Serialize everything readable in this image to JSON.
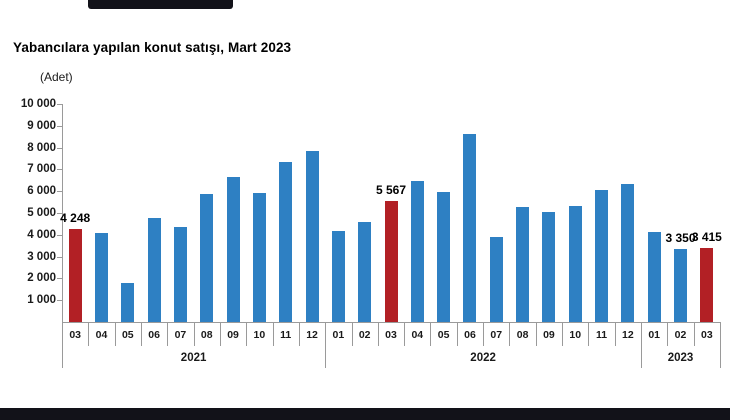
{
  "chart_data": {
    "type": "bar",
    "title": "Yabancılara yapılan konut satışı, Mart 2023",
    "unit_label": "(Adet)",
    "xlabel": "",
    "ylabel": "Adet",
    "ylim": [
      0,
      10000
    ],
    "ytick_values": [
      10000,
      9000,
      8000,
      7000,
      6000,
      5000,
      4000,
      3000,
      2000,
      1000
    ],
    "ytick_labels": [
      "10 000",
      "9 000",
      "8 000",
      "7 000",
      "6 000",
      "5 000",
      "4 000",
      "3 000",
      "2 000",
      "1 000"
    ],
    "grid": "off",
    "legend": "none",
    "years": [
      {
        "label": "2021",
        "months": [
          "03",
          "04",
          "05",
          "06",
          "07",
          "08",
          "09",
          "10",
          "11",
          "12"
        ]
      },
      {
        "label": "2022",
        "months": [
          "01",
          "02",
          "03",
          "04",
          "05",
          "06",
          "07",
          "08",
          "09",
          "10",
          "11",
          "12"
        ]
      },
      {
        "label": "2023",
        "months": [
          "01",
          "02",
          "03"
        ]
      }
    ],
    "categories": [
      "2021-03",
      "2021-04",
      "2021-05",
      "2021-06",
      "2021-07",
      "2021-08",
      "2021-09",
      "2021-10",
      "2021-11",
      "2021-12",
      "2022-01",
      "2022-02",
      "2022-03",
      "2022-04",
      "2022-05",
      "2022-06",
      "2022-07",
      "2022-08",
      "2022-09",
      "2022-10",
      "2022-11",
      "2022-12",
      "2023-01",
      "2023-02",
      "2023-03"
    ],
    "values": [
      4248,
      4080,
      1780,
      4750,
      4350,
      5870,
      6630,
      5900,
      7360,
      7840,
      4190,
      4590,
      5567,
      6450,
      5960,
      8630,
      3900,
      5270,
      5060,
      5300,
      6050,
      6350,
      4150,
      3350,
      3415
    ],
    "highlight_indices": [
      0,
      12,
      24
    ],
    "value_labels": [
      {
        "index": 0,
        "text": "4 248"
      },
      {
        "index": 12,
        "text": "5 567"
      },
      {
        "index": 23,
        "text": "3 350"
      },
      {
        "index": 24,
        "text": "3 415"
      }
    ],
    "colors": {
      "bar": "#2E80C3",
      "highlight": "#B22025",
      "axis": "#9A9A9A",
      "text": "#000000"
    }
  }
}
